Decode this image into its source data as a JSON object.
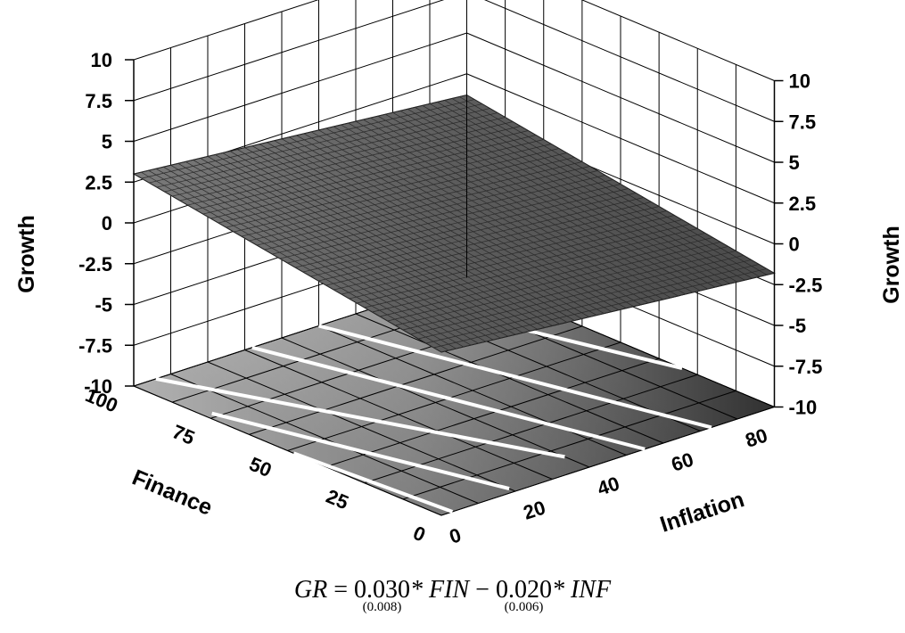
{
  "chart_data": {
    "type": "surface3d",
    "zlabel": "Growth",
    "zlabel_right": "Growth",
    "zlim": [
      -10,
      10
    ],
    "z_ticks": [
      "10",
      "7.5",
      "5",
      "2.5",
      "0",
      "-2.5",
      "-5",
      "-7.5",
      "-10"
    ],
    "finance_label": "Finance",
    "finance_range": [
      0,
      100
    ],
    "finance_ticks": [
      "100",
      "75",
      "50",
      "25",
      "0"
    ],
    "inflation_label": "Inflation",
    "inflation_range": [
      0,
      90
    ],
    "inflation_ticks": [
      "0",
      "20",
      "40",
      "60",
      "80"
    ],
    "surface_model": {
      "finance_coef": 0.03,
      "inflation_coef": -0.02
    },
    "corner_values": {
      "fin0_inf0": 0,
      "fin100_inf0": 3.0,
      "fin0_inf90": -1.8,
      "fin100_inf90": 1.2
    },
    "grid": true,
    "floor_contours": true
  },
  "equation": {
    "lhs": "GR",
    "eq": "=",
    "coef1": "0.030",
    "se1": "(0.008)",
    "var1": "* FIN",
    "minus": "−",
    "coef2": "0.020",
    "se2": "(0.006)",
    "var2": "* INF"
  }
}
